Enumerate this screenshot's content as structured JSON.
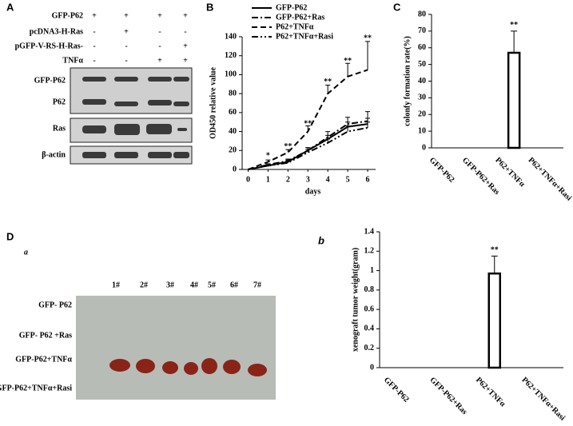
{
  "panel_a": {
    "label": "A",
    "rows": [
      {
        "label": "GFP-P62",
        "signs": [
          "+",
          "+",
          "+",
          "+"
        ]
      },
      {
        "label": "pcDNA3-H-Ras",
        "signs": [
          "-",
          "+",
          "-",
          "-"
        ]
      },
      {
        "label": "pGFP-V-RS-H-Ras-",
        "signs": [
          "-",
          "-",
          "-",
          "+"
        ]
      },
      {
        "label": "TNFα",
        "signs": [
          "-",
          "-",
          "+",
          "+"
        ]
      }
    ],
    "blots": [
      "GFP-P62",
      "P62",
      "Ras",
      "β-actin"
    ]
  },
  "panel_d": {
    "label": "D",
    "sublabel": "a",
    "samples": [
      "1#",
      "2#",
      "3#",
      "4#",
      "5#",
      "6#",
      "7#"
    ],
    "groups": [
      "GFP- P62",
      "GFP- P62 +Ras",
      "GFP-P62+TNFα",
      "GFP-P62+TNFα+Rasi"
    ]
  },
  "chart_data": [
    {
      "type": "line",
      "panel_label": "B",
      "xlabel": "days",
      "ylabel": "OD450 relative value",
      "x": [
        0,
        1,
        2,
        3,
        4,
        5,
        6
      ],
      "xlim": [
        -0.3,
        6.4
      ],
      "xticks": [
        0,
        1,
        2,
        3,
        4,
        5,
        6
      ],
      "ylim": [
        0,
        140
      ],
      "yticks": [
        0,
        20,
        40,
        60,
        80,
        100,
        120,
        140
      ],
      "series": [
        {
          "name": "GFP-P62",
          "color": "#000000",
          "line_style": "solid",
          "values": [
            0,
            4,
            8,
            20,
            32,
            45,
            48
          ],
          "errors": [
            0,
            1,
            2,
            3,
            4,
            5,
            6
          ]
        },
        {
          "name": "GFP-P62+Ras",
          "color": "#000000",
          "line_style": "dashdot",
          "values": [
            0,
            5,
            9,
            20,
            34,
            48,
            51
          ],
          "errors": [
            0,
            1,
            2,
            3,
            6,
            7,
            10
          ]
        },
        {
          "name": "P62+TNFα",
          "color": "#000000",
          "line_style": "dash",
          "values": [
            0,
            8,
            18,
            40,
            80,
            98,
            105
          ],
          "errors": [
            0,
            2,
            3,
            6,
            9,
            14,
            30
          ]
        },
        {
          "name": "P62+TNFα+Rasi",
          "color": "#000000",
          "line_style": "dashdotdot",
          "values": [
            0,
            4,
            7,
            18,
            28,
            40,
            44
          ],
          "errors": [
            0,
            1,
            2,
            3,
            4,
            6,
            6
          ]
        }
      ],
      "annotations": [
        {
          "text": "*",
          "x": 1,
          "y": 14
        },
        {
          "text": "**",
          "x": 2,
          "y": 24
        },
        {
          "text": "**",
          "x": 3,
          "y": 48
        },
        {
          "text": "**",
          "x": 4,
          "y": 92
        },
        {
          "text": "**",
          "x": 5,
          "y": 114
        },
        {
          "text": "**",
          "x": 6,
          "y": 138
        }
      ]
    },
    {
      "type": "bar",
      "panel_label": "C",
      "ylabel": "colonfy formation rate(%)",
      "categories": [
        "GFP-P62",
        "GFP-P62+Ras",
        "P62+TNFα",
        "P62+TNFα+Rasi"
      ],
      "values": [
        0,
        0,
        57,
        0
      ],
      "errors": [
        0,
        0,
        13,
        0
      ],
      "value_annotations": [
        null,
        null,
        "**",
        null
      ],
      "ylim": [
        0,
        80
      ],
      "yticks": [
        0,
        10,
        20,
        30,
        40,
        50,
        60,
        70,
        80
      ],
      "color": "#ffffff"
    },
    {
      "type": "bar",
      "panel_label": "b",
      "ylabel": "xenograft tumor weight(gram)",
      "categories": [
        "GFP-P62",
        "GFP-P62+Ras",
        "P62+TNFα",
        "P62+TNFα+Rasi"
      ],
      "values": [
        0,
        0,
        0.97,
        0
      ],
      "errors": [
        0,
        0,
        0.18,
        0
      ],
      "value_annotations": [
        null,
        null,
        "**",
        null
      ],
      "ylim": [
        0,
        1.4
      ],
      "yticks": [
        0,
        0.2,
        0.4,
        0.6,
        0.8,
        1,
        1.2,
        1.4
      ],
      "color": "#ffffff"
    }
  ]
}
